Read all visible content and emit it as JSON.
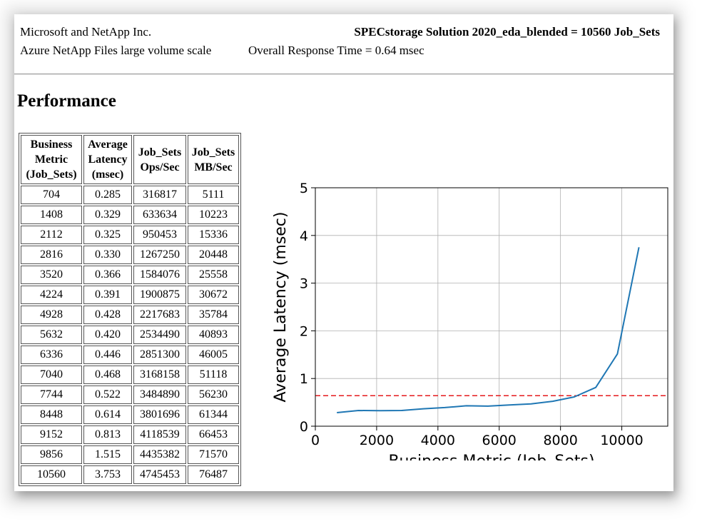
{
  "header": {
    "company": "Microsoft and NetApp Inc.",
    "product": "Azure NetApp Files large volume scale",
    "result": "SPECstorage Solution 2020_eda_blended = 10560 Job_Sets",
    "response_time": "Overall Response Time = 0.64 msec"
  },
  "section_title": "Performance",
  "table": {
    "headers": [
      [
        "Business",
        "Metric",
        "(Job_Sets)"
      ],
      [
        "Average",
        "Latency",
        "(msec)"
      ],
      [
        "Job_Sets",
        "Ops/Sec"
      ],
      [
        "Job_Sets",
        "MB/Sec"
      ]
    ],
    "rows": [
      [
        "704",
        "0.285",
        "316817",
        "5111"
      ],
      [
        "1408",
        "0.329",
        "633634",
        "10223"
      ],
      [
        "2112",
        "0.325",
        "950453",
        "15336"
      ],
      [
        "2816",
        "0.330",
        "1267250",
        "20448"
      ],
      [
        "3520",
        "0.366",
        "1584076",
        "25558"
      ],
      [
        "4224",
        "0.391",
        "1900875",
        "30672"
      ],
      [
        "4928",
        "0.428",
        "2217683",
        "35784"
      ],
      [
        "5632",
        "0.420",
        "2534490",
        "40893"
      ],
      [
        "6336",
        "0.446",
        "2851300",
        "46005"
      ],
      [
        "7040",
        "0.468",
        "3168158",
        "51118"
      ],
      [
        "7744",
        "0.522",
        "3484890",
        "56230"
      ],
      [
        "8448",
        "0.614",
        "3801696",
        "61344"
      ],
      [
        "9152",
        "0.813",
        "4118539",
        "66453"
      ],
      [
        "9856",
        "1.515",
        "4435382",
        "71570"
      ],
      [
        "10560",
        "3.753",
        "4745453",
        "76487"
      ]
    ]
  },
  "chart_data": {
    "type": "line",
    "title": "",
    "xlabel": "Business Metric (Job_Sets)",
    "ylabel": "Average Latency (msec)",
    "xlim": [
      0,
      11500
    ],
    "ylim": [
      0,
      5
    ],
    "xticks": [
      0,
      2000,
      4000,
      6000,
      8000,
      10000
    ],
    "yticks": [
      0,
      1,
      2,
      3,
      4,
      5
    ],
    "grid": true,
    "series": [
      {
        "color": "#1f77b4",
        "x": [
          704,
          1408,
          2112,
          2816,
          3520,
          4224,
          4928,
          5632,
          6336,
          7040,
          7744,
          8448,
          9152,
          9856,
          10560
        ],
        "y": [
          0.285,
          0.329,
          0.325,
          0.33,
          0.366,
          0.391,
          0.428,
          0.42,
          0.446,
          0.468,
          0.522,
          0.614,
          0.813,
          1.515,
          3.753
        ]
      }
    ],
    "reference_line": {
      "y": 0.64,
      "color": "#e41a1c",
      "style": "dashed"
    }
  }
}
